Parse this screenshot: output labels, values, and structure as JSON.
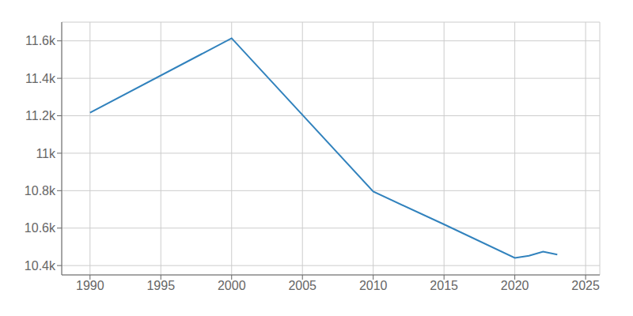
{
  "chart_data": {
    "type": "line",
    "x": [
      1990,
      2000,
      2010,
      2015,
      2020,
      2021,
      2022,
      2023
    ],
    "values": [
      11216,
      11614,
      10795,
      10620,
      10441,
      10452,
      10474,
      10459
    ],
    "xlim": [
      1988,
      2026
    ],
    "ylim": [
      10350,
      11700
    ],
    "xticks": [
      1990,
      1995,
      2000,
      2005,
      2010,
      2015,
      2020,
      2025
    ],
    "yticks": [
      {
        "value": 10400,
        "label": "10.4k"
      },
      {
        "value": 10600,
        "label": "10.6k"
      },
      {
        "value": 10800,
        "label": "10.8k"
      },
      {
        "value": 11000,
        "label": "11k"
      },
      {
        "value": 11200,
        "label": "11.2k"
      },
      {
        "value": 11400,
        "label": "11.4k"
      },
      {
        "value": 11600,
        "label": "11.6k"
      }
    ],
    "grid": true
  }
}
